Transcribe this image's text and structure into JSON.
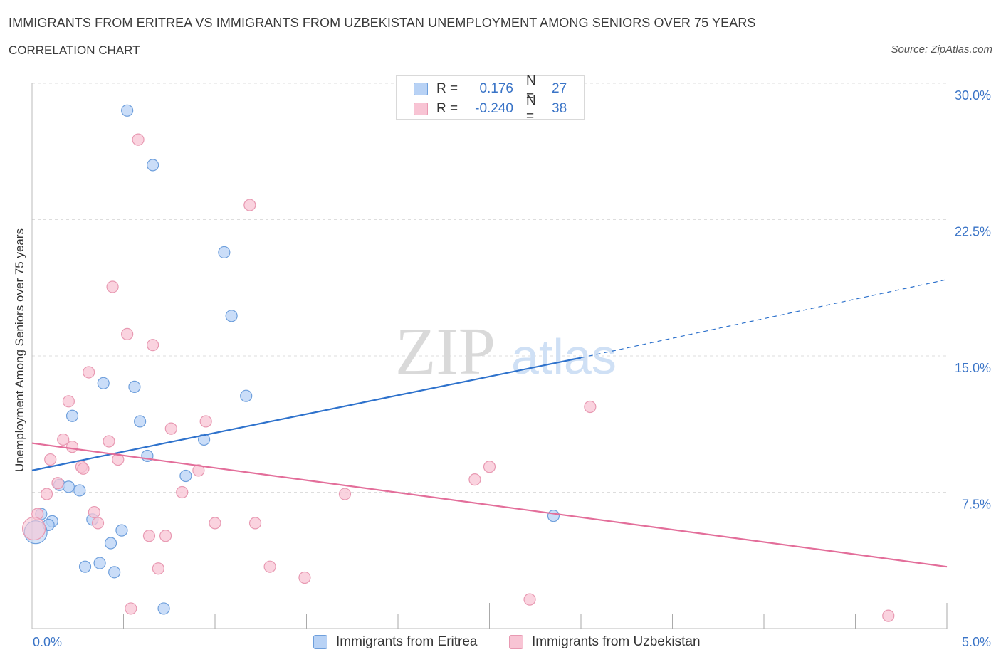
{
  "header": {
    "title": "IMMIGRANTS FROM ERITREA VS IMMIGRANTS FROM UZBEKISTAN UNEMPLOYMENT AMONG SENIORS OVER 75 YEARS",
    "subtitle": "CORRELATION CHART",
    "source": "Source: ZipAtlas.com"
  },
  "colors": {
    "eritrea_fill": "#b8d2f5",
    "eritrea_stroke": "#6e9fdc",
    "eritrea_line": "#2e72cc",
    "uzbek_fill": "#f8c4d4",
    "uzbek_stroke": "#e899b2",
    "uzbek_line": "#e36e9a",
    "tick_label": "#3a74c7",
    "grid": "#dddddd"
  },
  "legend": {
    "eritrea": {
      "r_label": "R =",
      "r_value": "0.176",
      "n_label": "N =",
      "n_value": "27"
    },
    "uzbek": {
      "r_label": "R =",
      "r_value": "-0.240",
      "n_label": "N =",
      "n_value": "38"
    }
  },
  "watermark": {
    "part1": "ZIP",
    "part2": "atlas"
  },
  "chart_data": {
    "type": "scatter",
    "title": "IMMIGRANTS FROM ERITREA VS IMMIGRANTS FROM UZBEKISTAN UNEMPLOYMENT AMONG SENIORS OVER 75 YEARS",
    "xlabel": "",
    "ylabel": "Unemployment Among Seniors over 75 years",
    "xlim": [
      0,
      5
    ],
    "ylim": [
      0,
      30
    ],
    "x_tick_labels": [
      "0.0%",
      "5.0%"
    ],
    "y_ticks": [
      7.5,
      15,
      22.5,
      30
    ],
    "y_tick_labels": [
      "7.5%",
      "15.0%",
      "22.5%",
      "30.0%"
    ],
    "grid": true,
    "series": [
      {
        "name": "Immigrants from Eritrea",
        "r": 0.176,
        "n": 27,
        "points": [
          [
            0.52,
            28.5
          ],
          [
            0.66,
            25.5
          ],
          [
            1.05,
            20.7
          ],
          [
            1.09,
            17.2
          ],
          [
            0.39,
            13.5
          ],
          [
            0.56,
            13.3
          ],
          [
            1.17,
            12.8
          ],
          [
            0.22,
            11.7
          ],
          [
            0.59,
            11.4
          ],
          [
            0.94,
            10.4
          ],
          [
            0.63,
            9.5
          ],
          [
            0.84,
            8.4
          ],
          [
            0.15,
            7.9
          ],
          [
            0.2,
            7.8
          ],
          [
            0.26,
            7.6
          ],
          [
            0.05,
            6.3
          ],
          [
            0.11,
            5.9
          ],
          [
            0.09,
            5.7
          ],
          [
            0.33,
            6.0
          ],
          [
            0.49,
            5.4
          ],
          [
            0.43,
            4.7
          ],
          [
            0.37,
            3.6
          ],
          [
            0.29,
            3.4
          ],
          [
            0.45,
            3.1
          ],
          [
            0.72,
            1.1
          ],
          [
            2.85,
            6.2
          ],
          [
            0.02,
            5.3
          ]
        ],
        "trend": {
          "x0": 0,
          "y0": 8.7,
          "x1": 3.0,
          "y1": 14.9,
          "dashed_to_x": 5.0,
          "dashed_to_y": 19.2
        }
      },
      {
        "name": "Immigrants from Uzbekistan",
        "r": -0.24,
        "n": 38,
        "points": [
          [
            0.58,
            26.9
          ],
          [
            1.19,
            23.3
          ],
          [
            0.44,
            18.8
          ],
          [
            0.52,
            16.2
          ],
          [
            0.66,
            15.6
          ],
          [
            0.31,
            14.1
          ],
          [
            0.2,
            12.5
          ],
          [
            0.76,
            11.0
          ],
          [
            0.95,
            11.4
          ],
          [
            0.17,
            10.4
          ],
          [
            0.42,
            10.3
          ],
          [
            0.22,
            10.0
          ],
          [
            0.1,
            9.3
          ],
          [
            0.47,
            9.3
          ],
          [
            0.27,
            8.9
          ],
          [
            0.28,
            8.8
          ],
          [
            0.91,
            8.7
          ],
          [
            0.14,
            8.0
          ],
          [
            0.08,
            7.4
          ],
          [
            0.82,
            7.5
          ],
          [
            1.71,
            7.4
          ],
          [
            2.42,
            8.2
          ],
          [
            2.5,
            8.9
          ],
          [
            3.05,
            12.2
          ],
          [
            0.34,
            6.4
          ],
          [
            0.36,
            5.8
          ],
          [
            0.03,
            6.3
          ],
          [
            1.0,
            5.8
          ],
          [
            1.22,
            5.8
          ],
          [
            0.64,
            5.1
          ],
          [
            0.73,
            5.1
          ],
          [
            0.69,
            3.3
          ],
          [
            1.3,
            3.4
          ],
          [
            1.49,
            2.8
          ],
          [
            2.72,
            1.6
          ],
          [
            0.54,
            1.1
          ],
          [
            4.68,
            0.7
          ],
          [
            0.01,
            5.5
          ]
        ],
        "trend": {
          "x0": 0,
          "y0": 10.2,
          "x1": 5.0,
          "y1": 3.4
        }
      }
    ]
  },
  "bottom_legend": {
    "eritrea_label": "Immigrants from Eritrea",
    "uzbek_label": "Immigrants from Uzbekistan"
  }
}
